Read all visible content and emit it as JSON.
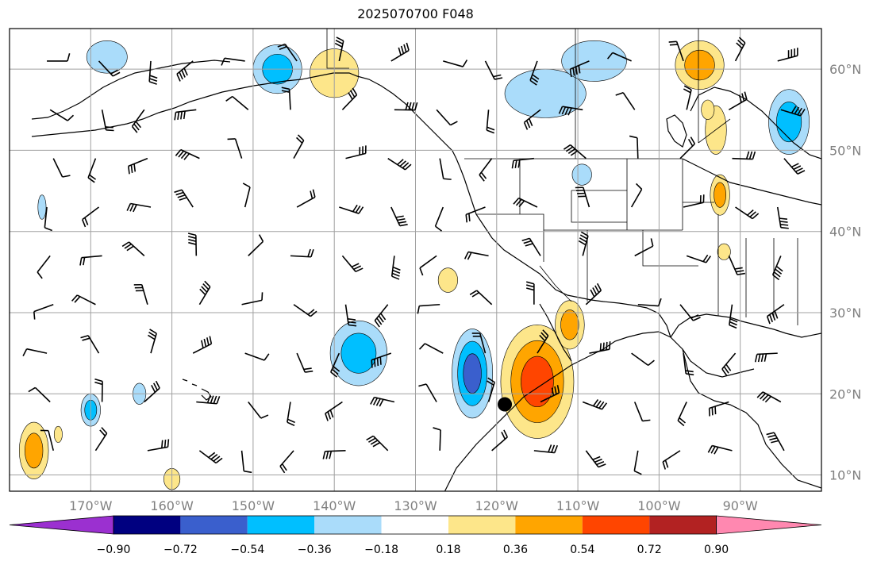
{
  "title": "2025070700 F048",
  "map": {
    "lon_range": [
      -180,
      -80
    ],
    "lat_range": [
      8,
      65
    ],
    "lon_ticks": [
      {
        "value": -170,
        "label": "170°W"
      },
      {
        "value": -160,
        "label": "160°W"
      },
      {
        "value": -150,
        "label": "150°W"
      },
      {
        "value": -140,
        "label": "140°W"
      },
      {
        "value": -130,
        "label": "130°W"
      },
      {
        "value": -120,
        "label": "120°W"
      },
      {
        "value": -110,
        "label": "110°W"
      },
      {
        "value": -100,
        "label": "100°W"
      },
      {
        "value": -90,
        "label": "90°W"
      }
    ],
    "lat_ticks": [
      {
        "value": 60,
        "label": "60°N"
      },
      {
        "value": 50,
        "label": "50°N"
      },
      {
        "value": 40,
        "label": "40°N"
      },
      {
        "value": 30,
        "label": "30°N"
      },
      {
        "value": 20,
        "label": "20°N"
      },
      {
        "value": 10,
        "label": "10°N"
      }
    ],
    "grid": true,
    "storm_marker": {
      "lon": -119,
      "lat": 18.7
    }
  },
  "colorbar": {
    "colors": [
      "#9b30d0",
      "#000080",
      "#3a5fcd",
      "#00bfff",
      "#aadcfa",
      "#ffffff",
      "#fde68a",
      "#ffa500",
      "#ff4500",
      "#b22222",
      "#ff88b0"
    ],
    "labels": [
      "−0.90",
      "−0.72",
      "−0.54",
      "−0.36",
      "−0.18",
      "0.18",
      "0.36",
      "0.54",
      "0.72",
      "0.90"
    ]
  },
  "chart_data": {
    "type": "heatmap",
    "title": "2025070700 F048",
    "xlabel": "",
    "ylabel": "",
    "xlim": [
      -180,
      -80
    ],
    "ylim": [
      8,
      65
    ],
    "blobs": [
      {
        "lon": -115,
        "lat": 21.5,
        "rlon": 4.5,
        "rlat": 7,
        "levels": [
          0.18,
          0.36,
          0.54
        ]
      },
      {
        "lon": -111,
        "lat": 28.5,
        "rlon": 1.8,
        "rlat": 3,
        "levels": [
          0.18,
          0.36
        ]
      },
      {
        "lon": -123,
        "lat": 22.5,
        "rlon": 2.5,
        "rlat": 5.5,
        "levels": [
          -0.18,
          -0.36,
          -0.54
        ]
      },
      {
        "lon": -137,
        "lat": 25,
        "rlon": 3.5,
        "rlat": 4,
        "levels": [
          -0.18,
          -0.36
        ]
      },
      {
        "lon": -177,
        "lat": 13,
        "rlon": 1.8,
        "rlat": 3.5,
        "levels": [
          0.18,
          0.36
        ]
      },
      {
        "lon": -170,
        "lat": 18,
        "rlon": 1.2,
        "rlat": 2,
        "levels": [
          -0.18,
          -0.36
        ]
      },
      {
        "lon": -147,
        "lat": 60,
        "rlon": 3,
        "rlat": 3,
        "levels": [
          -0.18,
          -0.36
        ]
      },
      {
        "lon": -168,
        "lat": 61.5,
        "rlon": 2.5,
        "rlat": 2,
        "levels": [
          -0.18
        ]
      },
      {
        "lon": -140,
        "lat": 59.5,
        "rlon": 3,
        "rlat": 3,
        "levels": [
          0.18
        ]
      },
      {
        "lon": -114,
        "lat": 57,
        "rlon": 5,
        "rlat": 3,
        "levels": [
          -0.18
        ]
      },
      {
        "lon": -108,
        "lat": 61,
        "rlon": 4,
        "rlat": 2.5,
        "levels": [
          -0.18
        ]
      },
      {
        "lon": -95,
        "lat": 60.5,
        "rlon": 3,
        "rlat": 3,
        "levels": [
          0.18,
          0.36
        ]
      },
      {
        "lon": -84,
        "lat": 53.5,
        "rlon": 2.5,
        "rlat": 4,
        "levels": [
          -0.18,
          -0.36
        ]
      },
      {
        "lon": -92.5,
        "lat": 44.5,
        "rlon": 1.2,
        "rlat": 2.5,
        "levels": [
          0.18,
          0.36
        ]
      },
      {
        "lon": -93,
        "lat": 52.5,
        "rlon": 1.3,
        "rlat": 3,
        "levels": [
          0.18
        ]
      },
      {
        "lon": -164,
        "lat": 20,
        "rlon": 0.8,
        "rlat": 1.3,
        "levels": [
          -0.18
        ]
      },
      {
        "lon": -176,
        "lat": 43,
        "rlon": 0.5,
        "rlat": 1.5,
        "levels": [
          -0.18
        ]
      },
      {
        "lon": -160,
        "lat": 9.5,
        "rlon": 1,
        "rlat": 1.3,
        "levels": [
          0.18
        ]
      },
      {
        "lon": -174,
        "lat": 15,
        "rlon": 0.5,
        "rlat": 1,
        "levels": [
          0.18
        ]
      },
      {
        "lon": -92,
        "lat": 37.5,
        "rlon": 0.8,
        "rlat": 1,
        "levels": [
          0.18
        ]
      },
      {
        "lon": -126,
        "lat": 34,
        "rlon": 1.2,
        "rlat": 1.5,
        "levels": [
          0.18
        ]
      },
      {
        "lon": -109.5,
        "lat": 47,
        "rlon": 1.2,
        "rlat": 1.3,
        "levels": [
          -0.18
        ]
      },
      {
        "lon": -94,
        "lat": 55,
        "rlon": 0.8,
        "rlat": 1.2,
        "levels": [
          0.18
        ]
      }
    ]
  }
}
